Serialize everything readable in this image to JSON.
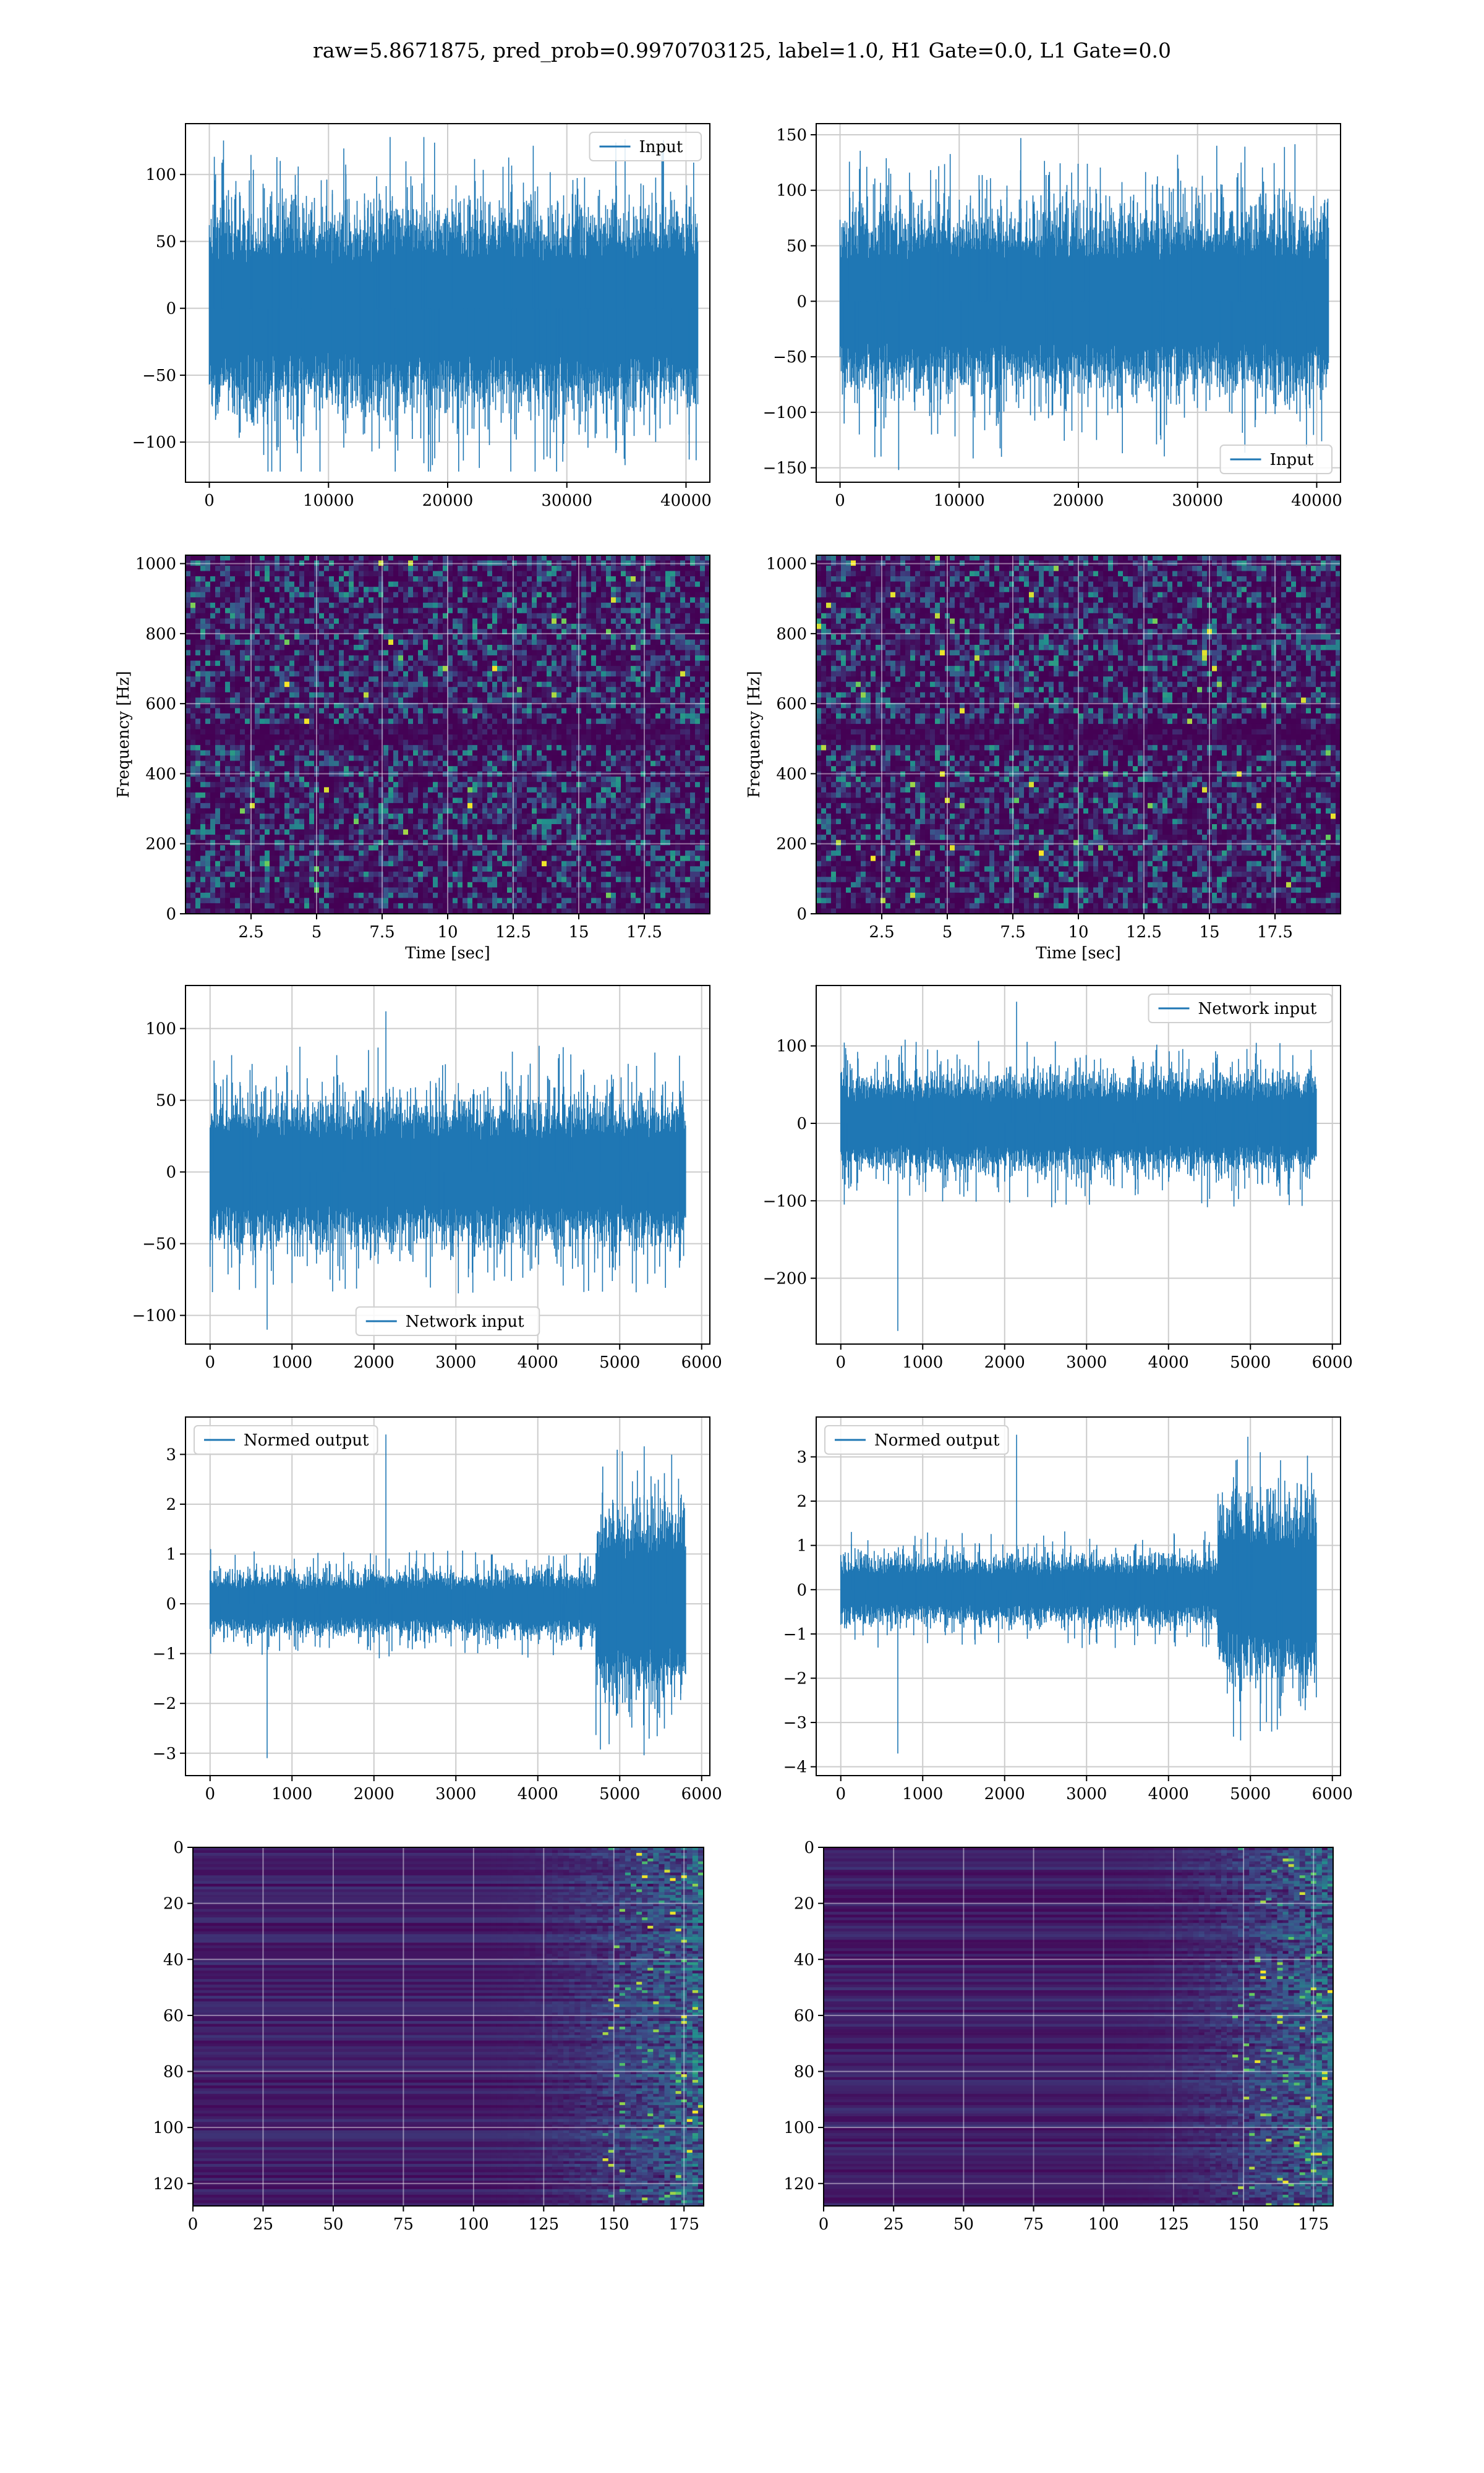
{
  "figure_title": "raw=5.8671875, pred_prob=0.9970703125, label=1.0, H1 Gate=0.0, L1 Gate=0.0",
  "colors": {
    "line": "#1f77b4",
    "grid": "#cccccc",
    "axes": "#000000",
    "viridis_low": "#440154",
    "viridis_mid": "#21918c",
    "viridis_high": "#fde725"
  },
  "chart_data": [
    {
      "id": "p1",
      "type": "line",
      "legend": [
        "Input"
      ],
      "legend_loc": "top-right",
      "xlim": [
        -2000,
        42000
      ],
      "ylim": [
        -130,
        138
      ],
      "xticks": [
        0,
        10000,
        20000,
        30000,
        40000
      ],
      "yticks": [
        -100,
        -50,
        0,
        50,
        100
      ],
      "signal": {
        "x_start": 0,
        "x_end": 41000,
        "band": 60,
        "peak_max": 128,
        "peak_min": -122
      }
    },
    {
      "id": "p2",
      "type": "line",
      "legend": [
        "Input"
      ],
      "legend_loc": "bottom-right",
      "xlim": [
        -2000,
        42000
      ],
      "ylim": [
        -163,
        160
      ],
      "xticks": [
        0,
        10000,
        20000,
        30000,
        40000
      ],
      "yticks": [
        -150,
        -100,
        -50,
        0,
        50,
        100,
        150
      ],
      "signal": {
        "x_start": 0,
        "x_end": 41000,
        "band": 65,
        "peak_max": 147,
        "peak_min": -152
      }
    },
    {
      "id": "p3",
      "type": "heatmap",
      "xlabel": "Time [sec]",
      "ylabel": "Frequency [Hz]",
      "xlim": [
        0,
        20
      ],
      "ylim": [
        0,
        1024
      ],
      "xticks": [
        2.5,
        5.0,
        7.5,
        10.0,
        12.5,
        15.0,
        17.5
      ],
      "yticks": [
        0,
        200,
        400,
        600,
        800,
        1000
      ]
    },
    {
      "id": "p4",
      "type": "heatmap",
      "xlabel": "Time [sec]",
      "ylabel": "Frequency [Hz]",
      "xlim": [
        0,
        20
      ],
      "ylim": [
        0,
        1024
      ],
      "xticks": [
        2.5,
        5.0,
        7.5,
        10.0,
        12.5,
        15.0,
        17.5
      ],
      "yticks": [
        0,
        200,
        400,
        600,
        800,
        1000
      ]
    },
    {
      "id": "p5",
      "type": "line",
      "legend": [
        "Network input"
      ],
      "legend_loc": "bottom-center",
      "xlim": [
        -300,
        6100
      ],
      "ylim": [
        -120,
        130
      ],
      "xticks": [
        0,
        1000,
        2000,
        3000,
        4000,
        5000,
        6000
      ],
      "yticks": [
        -100,
        -50,
        0,
        50,
        100
      ],
      "signal": {
        "x_start": 0,
        "x_end": 5800,
        "band": 40,
        "peak_max": 112,
        "peak_min": -110
      }
    },
    {
      "id": "p6",
      "type": "line",
      "legend": [
        "Network input"
      ],
      "legend_loc": "top-right",
      "xlim": [
        -300,
        6100
      ],
      "ylim": [
        -285,
        178
      ],
      "xticks": [
        0,
        1000,
        2000,
        3000,
        4000,
        5000,
        6000
      ],
      "yticks": [
        -200,
        -100,
        0,
        100
      ],
      "signal": {
        "x_start": 0,
        "x_end": 5800,
        "band": 50,
        "peak_max": 157,
        "peak_min": -268
      }
    },
    {
      "id": "p7",
      "type": "line",
      "legend": [
        "Normed output"
      ],
      "legend_loc": "top-left",
      "xlim": [
        -300,
        6100
      ],
      "ylim": [
        -3.45,
        3.75
      ],
      "xticks": [
        0,
        1000,
        2000,
        3000,
        4000,
        5000,
        6000
      ],
      "yticks": [
        -3,
        -2,
        -1,
        0,
        1,
        2,
        3
      ],
      "signal": {
        "x_start": 0,
        "x_end": 5800,
        "band": 0.5,
        "burst_start": 4700,
        "burst_band": 1.5,
        "peak_max": 3.4,
        "peak_min": -3.1
      }
    },
    {
      "id": "p8",
      "type": "line",
      "legend": [
        "Normed output"
      ],
      "legend_loc": "top-left",
      "xlim": [
        -300,
        6100
      ],
      "ylim": [
        -4.2,
        3.9
      ],
      "xticks": [
        0,
        1000,
        2000,
        3000,
        4000,
        5000,
        6000
      ],
      "yticks": [
        -4,
        -3,
        -2,
        -1,
        0,
        1,
        2,
        3
      ],
      "signal": {
        "x_start": 0,
        "x_end": 5800,
        "band": 0.6,
        "burst_start": 4600,
        "burst_band": 1.6,
        "peak_max": 3.5,
        "peak_min": -3.7
      }
    },
    {
      "id": "p9",
      "type": "heatmap",
      "orientation": "inverted-y",
      "xlim": [
        0,
        182
      ],
      "ylim": [
        0,
        128
      ],
      "xticks": [
        0,
        25,
        50,
        75,
        100,
        125,
        150,
        175
      ],
      "yticks": [
        0,
        20,
        40,
        60,
        80,
        100,
        120
      ],
      "activity_start": 100
    },
    {
      "id": "p10",
      "type": "heatmap",
      "orientation": "inverted-y",
      "xlim": [
        0,
        182
      ],
      "ylim": [
        0,
        128
      ],
      "xticks": [
        0,
        25,
        50,
        75,
        100,
        125,
        150,
        175
      ],
      "yticks": [
        0,
        20,
        40,
        60,
        80,
        100,
        120
      ],
      "activity_start": 100
    }
  ]
}
